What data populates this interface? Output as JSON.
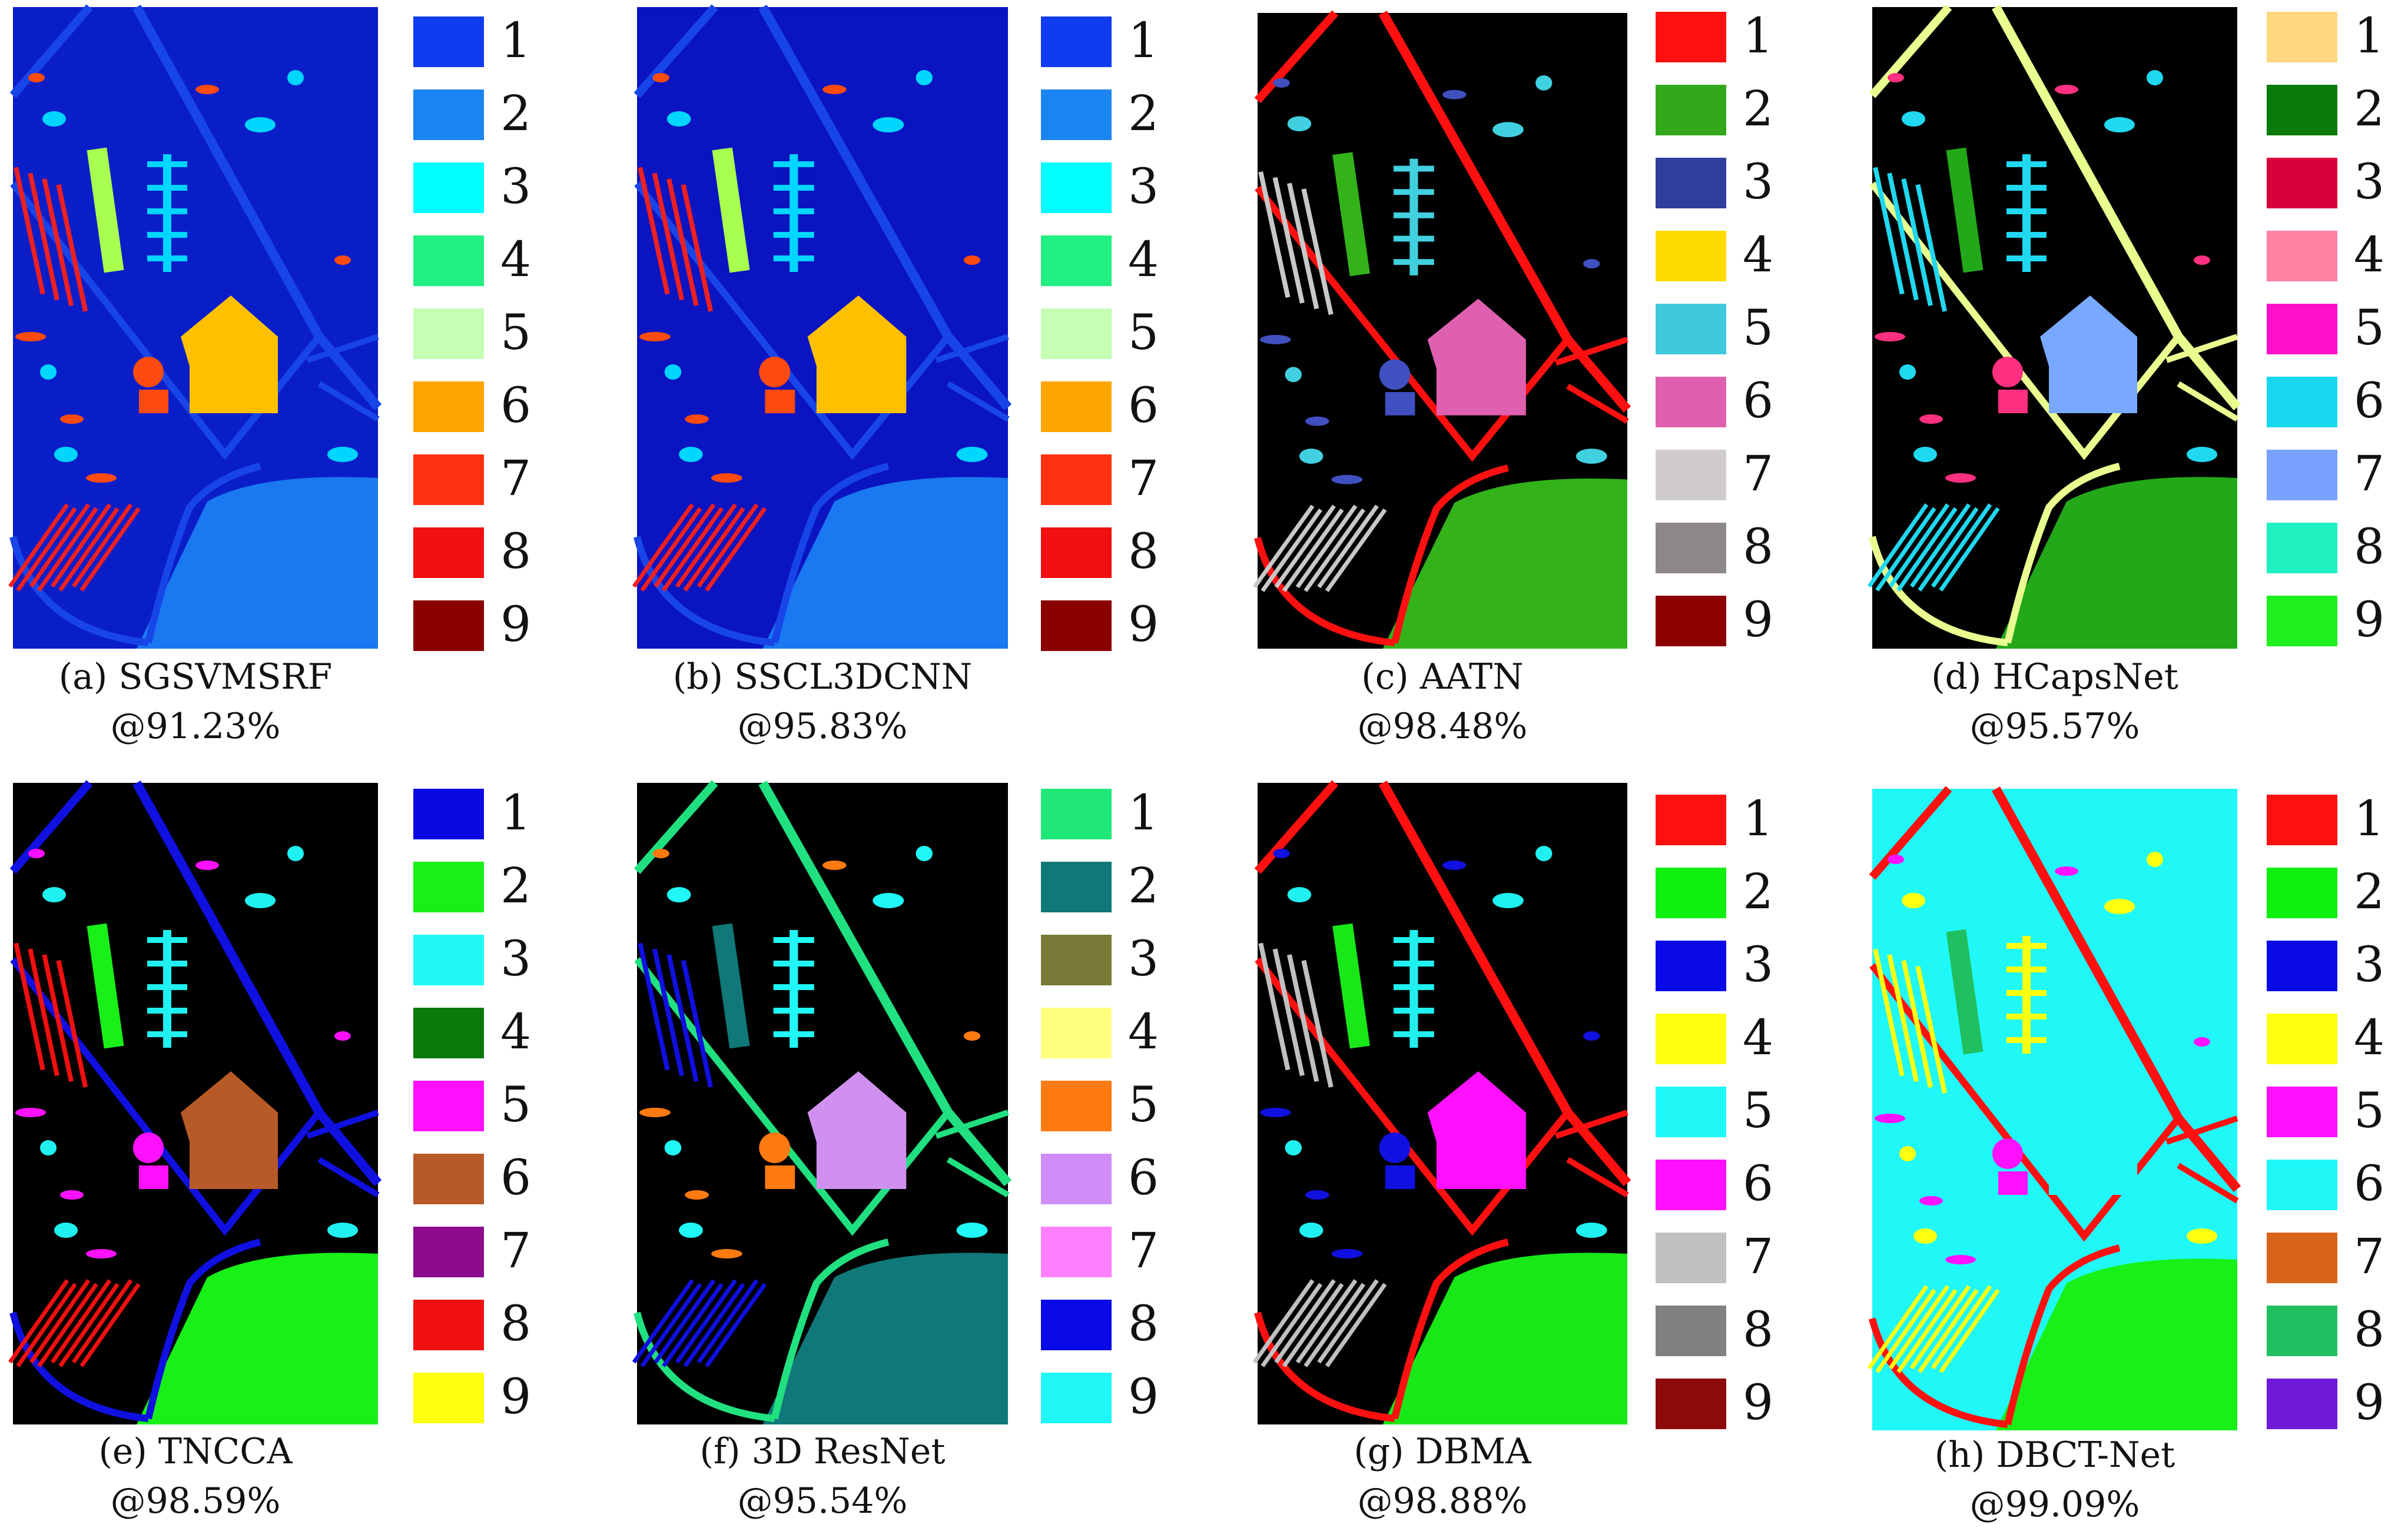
{
  "panels": [
    {
      "caption": "(a) SGSVMSRF",
      "accuracy": "@91.23%",
      "map": {
        "background": "#0a1ec8",
        "meadow": "#1a78f0",
        "roads": "#1845e8",
        "building": "#ffc000",
        "trees": "#00d6ff",
        "asphalt": "#f02020",
        "grass_strip": "#a8ff50",
        "bricks": "#ff4a10"
      },
      "legend": [
        {
          "label": "1",
          "color": "#0f3cf0"
        },
        {
          "label": "2",
          "color": "#1a85f0"
        },
        {
          "label": "3",
          "color": "#00ffff"
        },
        {
          "label": "4",
          "color": "#22f080"
        },
        {
          "label": "5",
          "color": "#c4ffb4"
        },
        {
          "label": "6",
          "color": "#ffa500"
        },
        {
          "label": "7",
          "color": "#ff3010"
        },
        {
          "label": "8",
          "color": "#f01010"
        },
        {
          "label": "9",
          "color": "#8a0000"
        }
      ]
    },
    {
      "caption": "(b) SSCL3DCNN",
      "accuracy": "@95.83%",
      "map": {
        "background": "#0a14c0",
        "meadow": "#1a78f0",
        "roads": "#1845e8",
        "building": "#ffc000",
        "trees": "#00d6ff",
        "asphalt": "#f02020",
        "grass_strip": "#a8ff50",
        "bricks": "#ff4a10"
      },
      "legend": [
        {
          "label": "1",
          "color": "#0f3cf0"
        },
        {
          "label": "2",
          "color": "#1a85f0"
        },
        {
          "label": "3",
          "color": "#00ffff"
        },
        {
          "label": "4",
          "color": "#22f080"
        },
        {
          "label": "5",
          "color": "#c4ffb4"
        },
        {
          "label": "6",
          "color": "#ffa500"
        },
        {
          "label": "7",
          "color": "#ff3010"
        },
        {
          "label": "8",
          "color": "#f01010"
        },
        {
          "label": "9",
          "color": "#8a0000"
        }
      ]
    },
    {
      "caption": "(c) AATN",
      "accuracy": "@98.48%",
      "map": {
        "background": "#000000",
        "meadow": "#33b21a",
        "roads": "#ff1010",
        "building": "#e060b0",
        "trees": "#40d0e0",
        "asphalt": "#c8c8c8",
        "grass_strip": "#33b21a",
        "bricks": "#4050c0"
      },
      "legend": [
        {
          "label": "1",
          "color": "#ff1010"
        },
        {
          "label": "2",
          "color": "#33a81a"
        },
        {
          "label": "3",
          "color": "#2e3e9c"
        },
        {
          "label": "4",
          "color": "#ffdc00"
        },
        {
          "label": "5",
          "color": "#40c8dc"
        },
        {
          "label": "6",
          "color": "#e060b0"
        },
        {
          "label": "7",
          "color": "#d0cccc"
        },
        {
          "label": "8",
          "color": "#8c8888"
        },
        {
          "label": "9",
          "color": "#8c0000"
        }
      ]
    },
    {
      "caption": "(d) HCapsNet",
      "accuracy": "@95.57%",
      "map": {
        "background": "#000000",
        "meadow": "#23a81a",
        "roads": "#e8ff90",
        "building": "#78a8ff",
        "trees": "#20d8f0",
        "asphalt": "#20d8f0",
        "grass_strip": "#23a81a",
        "bricks": "#ff3080"
      },
      "legend": [
        {
          "label": "1",
          "color": "#ffd880"
        },
        {
          "label": "2",
          "color": "#0a7a0a"
        },
        {
          "label": "3",
          "color": "#d8003a"
        },
        {
          "label": "4",
          "color": "#ff80a0"
        },
        {
          "label": "5",
          "color": "#ff10c8"
        },
        {
          "label": "6",
          "color": "#18d8f0"
        },
        {
          "label": "7",
          "color": "#78a0ff"
        },
        {
          "label": "8",
          "color": "#20f0c0"
        },
        {
          "label": "9",
          "color": "#20f020"
        }
      ]
    },
    {
      "caption": "(e) TNCCA",
      "accuracy": "@98.59%",
      "map": {
        "background": "#000000",
        "meadow": "#18f018",
        "roads": "#1010e0",
        "building": "#b85a28",
        "trees": "#20f0f0",
        "asphalt": "#f01010",
        "grass_strip": "#18f018",
        "bricks": "#ff10ff"
      },
      "legend": [
        {
          "label": "1",
          "color": "#0a0ae0"
        },
        {
          "label": "2",
          "color": "#18f018"
        },
        {
          "label": "3",
          "color": "#20f8f8"
        },
        {
          "label": "4",
          "color": "#0a7a0a"
        },
        {
          "label": "5",
          "color": "#ff10ff"
        },
        {
          "label": "6",
          "color": "#b85a28"
        },
        {
          "label": "7",
          "color": "#8c0a8c"
        },
        {
          "label": "8",
          "color": "#f01010"
        },
        {
          "label": "9",
          "color": "#ffff10"
        }
      ]
    },
    {
      "caption": "(f) 3D ResNet",
      "accuracy": "@95.54%",
      "map": {
        "background": "#000000",
        "meadow": "#107878",
        "roads": "#20e080",
        "building": "#d090f0",
        "trees": "#20f8f8",
        "asphalt": "#1010e0",
        "grass_strip": "#107878",
        "bricks": "#ff7a10"
      },
      "legend": [
        {
          "label": "1",
          "color": "#20e878"
        },
        {
          "label": "2",
          "color": "#107878"
        },
        {
          "label": "3",
          "color": "#7a7a38"
        },
        {
          "label": "4",
          "color": "#ffff80"
        },
        {
          "label": "5",
          "color": "#ff7a10"
        },
        {
          "label": "6",
          "color": "#d08cf8"
        },
        {
          "label": "7",
          "color": "#ff80ff"
        },
        {
          "label": "8",
          "color": "#0a0ae8"
        },
        {
          "label": "9",
          "color": "#20f8f8"
        }
      ]
    },
    {
      "caption": "(g) DBMA",
      "accuracy": "@98.88%",
      "map": {
        "background": "#000000",
        "meadow": "#18e818",
        "roads": "#ff1010",
        "building": "#ff10ff",
        "trees": "#20f0f0",
        "asphalt": "#c0c0c0",
        "grass_strip": "#18e818",
        "bricks": "#1010e0"
      },
      "legend": [
        {
          "label": "1",
          "color": "#ff1010"
        },
        {
          "label": "2",
          "color": "#10f010"
        },
        {
          "label": "3",
          "color": "#0a0ae8"
        },
        {
          "label": "4",
          "color": "#ffff10"
        },
        {
          "label": "5",
          "color": "#20f8f8"
        },
        {
          "label": "6",
          "color": "#ff10ff"
        },
        {
          "label": "7",
          "color": "#c0c0c0"
        },
        {
          "label": "8",
          "color": "#808080"
        },
        {
          "label": "9",
          "color": "#8c0a0a"
        }
      ]
    },
    {
      "caption": "(h) DBCT-Net",
      "accuracy": "@99.09%",
      "map": {
        "background": "#20f8f8",
        "meadow": "#18f018",
        "roads": "#ff1010",
        "building": "#20f8f8",
        "trees": "#ffff10",
        "asphalt": "#ffff10",
        "grass_strip": "#20c060",
        "bricks": "#ff10ff"
      },
      "legend": [
        {
          "label": "1",
          "color": "#ff1010"
        },
        {
          "label": "2",
          "color": "#10f010"
        },
        {
          "label": "3",
          "color": "#0a0ae8"
        },
        {
          "label": "4",
          "color": "#ffff10"
        },
        {
          "label": "5",
          "color": "#ff10ff"
        },
        {
          "label": "6",
          "color": "#20f8f8"
        },
        {
          "label": "7",
          "color": "#d8641a"
        },
        {
          "label": "8",
          "color": "#20c060"
        },
        {
          "label": "9",
          "color": "#6e1ad8"
        }
      ]
    }
  ]
}
